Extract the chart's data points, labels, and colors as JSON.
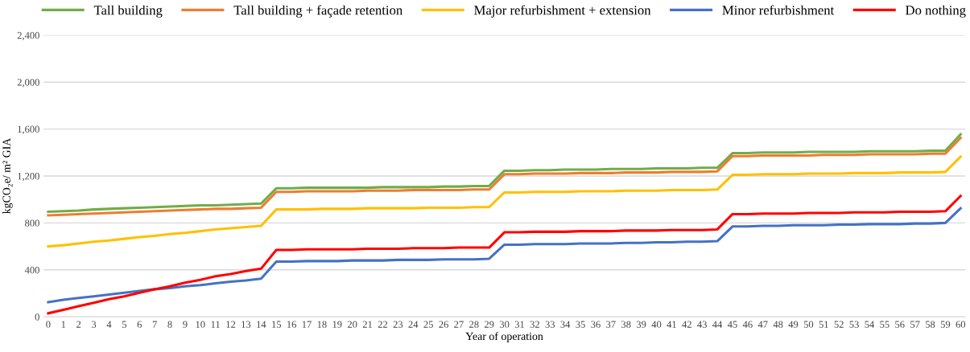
{
  "chart_data": {
    "type": "line",
    "xlabel": "Year of operation",
    "ylabel": "kgCO₂e/ m² GIA",
    "categories": [
      "0",
      "1",
      "2",
      "3",
      "4",
      "5",
      "6",
      "7",
      "8",
      "9",
      "10",
      "11",
      "12",
      "13",
      "14",
      "15",
      "16",
      "17",
      "18",
      "19",
      "20",
      "21",
      "22",
      "23",
      "24",
      "25",
      "26",
      "27",
      "28",
      "29",
      "30",
      "31",
      "32",
      "33",
      "34",
      "35",
      "36",
      "37",
      "38",
      "39",
      "40",
      "41",
      "42",
      "43",
      "44",
      "45",
      "46",
      "47",
      "48",
      "49",
      "50",
      "51",
      "52",
      "53",
      "54",
      "55",
      "56",
      "57",
      "58",
      "59",
      "60"
    ],
    "ylim": [
      0,
      2400
    ],
    "yticks": [
      {
        "value": 0,
        "label": "0"
      },
      {
        "value": 400,
        "label": "400"
      },
      {
        "value": 800,
        "label": "800"
      },
      {
        "value": 1200,
        "label": "1,200"
      },
      {
        "value": 1600,
        "label": "1,600"
      },
      {
        "value": 2000,
        "label": "2,000"
      },
      {
        "value": 2400,
        "label": "2,400"
      }
    ],
    "grid": "y",
    "legend": "top",
    "marker": "none",
    "line_style": "solid",
    "series": [
      {
        "name": "Tall building",
        "color": "#70ad47",
        "values": [
          895,
          900,
          905,
          915,
          920,
          925,
          930,
          935,
          940,
          945,
          950,
          950,
          955,
          960,
          965,
          1095,
          1095,
          1100,
          1100,
          1100,
          1100,
          1100,
          1105,
          1105,
          1105,
          1105,
          1110,
          1110,
          1115,
          1115,
          1245,
          1245,
          1250,
          1250,
          1255,
          1255,
          1255,
          1260,
          1260,
          1260,
          1265,
          1265,
          1265,
          1270,
          1270,
          1395,
          1395,
          1400,
          1400,
          1400,
          1405,
          1405,
          1405,
          1405,
          1410,
          1410,
          1410,
          1410,
          1415,
          1415,
          1555
        ]
      },
      {
        "name": "Tall building + façade retention",
        "color": "#ed7d31",
        "values": [
          865,
          870,
          875,
          880,
          885,
          890,
          895,
          900,
          905,
          910,
          915,
          920,
          920,
          925,
          930,
          1065,
          1065,
          1070,
          1070,
          1070,
          1070,
          1075,
          1075,
          1075,
          1080,
          1080,
          1080,
          1080,
          1085,
          1085,
          1215,
          1215,
          1220,
          1220,
          1220,
          1225,
          1225,
          1225,
          1230,
          1230,
          1230,
          1235,
          1235,
          1235,
          1240,
          1370,
          1370,
          1375,
          1375,
          1375,
          1375,
          1380,
          1380,
          1380,
          1385,
          1385,
          1385,
          1385,
          1390,
          1390,
          1525
        ]
      },
      {
        "name": "Major refurbishment + extension",
        "color": "#ffc000",
        "values": [
          600,
          610,
          625,
          640,
          650,
          665,
          680,
          690,
          705,
          715,
          730,
          745,
          755,
          765,
          775,
          915,
          915,
          915,
          920,
          920,
          920,
          925,
          925,
          925,
          925,
          930,
          930,
          930,
          935,
          935,
          1060,
          1060,
          1065,
          1065,
          1065,
          1070,
          1070,
          1070,
          1075,
          1075,
          1075,
          1080,
          1080,
          1080,
          1085,
          1210,
          1210,
          1215,
          1215,
          1215,
          1220,
          1220,
          1220,
          1225,
          1225,
          1225,
          1230,
          1230,
          1230,
          1235,
          1365
        ]
      },
      {
        "name": "Minor refurbishment",
        "color": "#4472c4",
        "values": [
          125,
          145,
          160,
          175,
          190,
          205,
          220,
          235,
          245,
          260,
          270,
          285,
          300,
          310,
          325,
          470,
          470,
          475,
          475,
          475,
          480,
          480,
          480,
          485,
          485,
          485,
          490,
          490,
          490,
          495,
          615,
          615,
          620,
          620,
          620,
          625,
          625,
          625,
          630,
          630,
          635,
          635,
          640,
          640,
          645,
          770,
          770,
          775,
          775,
          780,
          780,
          780,
          785,
          785,
          790,
          790,
          790,
          795,
          795,
          800,
          925
        ]
      },
      {
        "name": "Do nothing",
        "color": "#ff0000",
        "values": [
          30,
          60,
          90,
          120,
          150,
          175,
          205,
          235,
          260,
          290,
          315,
          345,
          365,
          390,
          410,
          570,
          570,
          575,
          575,
          575,
          575,
          580,
          580,
          580,
          585,
          585,
          585,
          590,
          590,
          590,
          720,
          720,
          725,
          725,
          725,
          730,
          730,
          730,
          735,
          735,
          735,
          740,
          740,
          740,
          745,
          875,
          875,
          880,
          880,
          880,
          885,
          885,
          885,
          890,
          890,
          890,
          895,
          895,
          895,
          900,
          1030
        ]
      }
    ]
  }
}
